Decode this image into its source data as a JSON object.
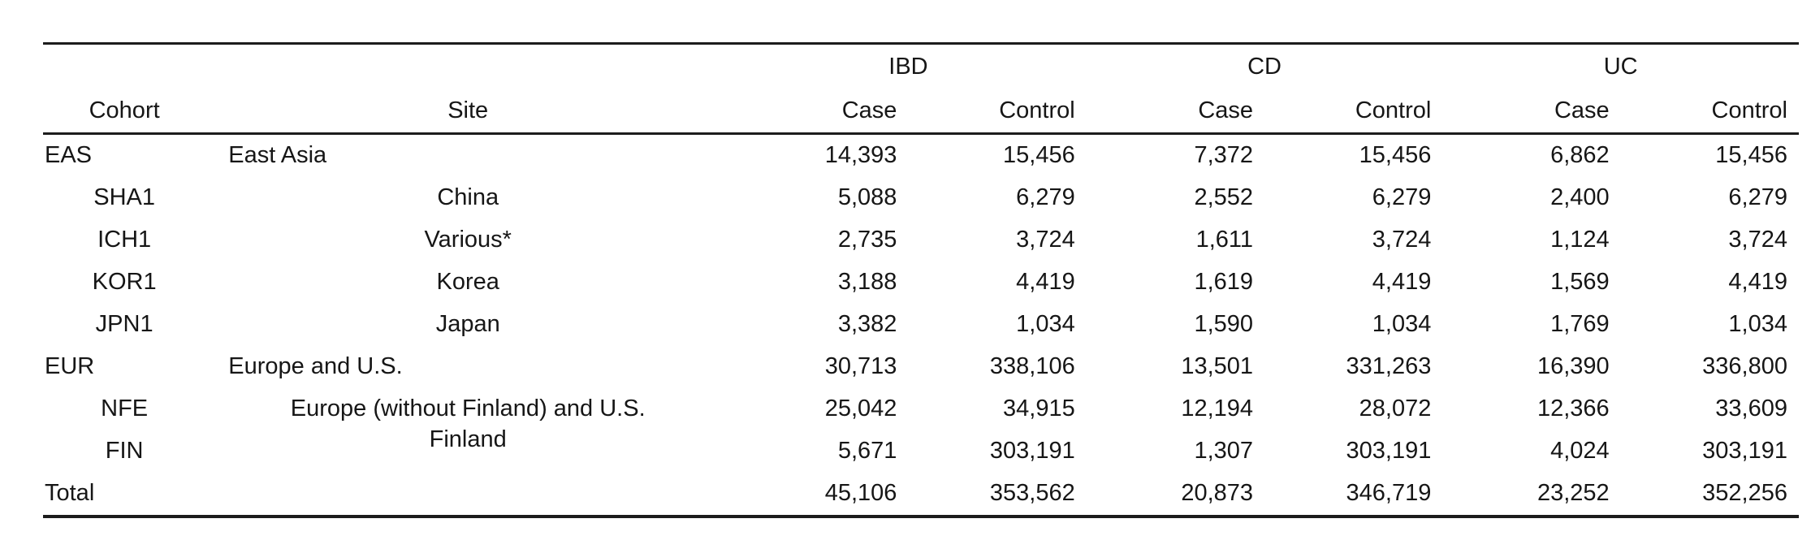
{
  "table": {
    "group_headers": [
      {
        "label": "IBD"
      },
      {
        "label": "CD"
      },
      {
        "label": "UC"
      }
    ],
    "column_headers": {
      "cohort": "Cohort",
      "site": "Site",
      "case": "Case",
      "control": "Control"
    },
    "rows": [
      {
        "cohort": "EAS",
        "site": "East Asia",
        "level": "group",
        "values": [
          "14,393",
          "15,456",
          "7,372",
          "15,456",
          "6,862",
          "15,456"
        ]
      },
      {
        "cohort": "SHA1",
        "site": "China",
        "level": "sub",
        "values": [
          "5,088",
          "6,279",
          "2,552",
          "6,279",
          "2,400",
          "6,279"
        ]
      },
      {
        "cohort": "ICH1",
        "site": "Various*",
        "level": "sub",
        "values": [
          "2,735",
          "3,724",
          "1,611",
          "3,724",
          "1,124",
          "3,724"
        ]
      },
      {
        "cohort": "KOR1",
        "site": "Korea",
        "level": "sub",
        "values": [
          "3,188",
          "4,419",
          "1,619",
          "4,419",
          "1,569",
          "4,419"
        ]
      },
      {
        "cohort": "JPN1",
        "site": "Japan",
        "level": "sub",
        "values": [
          "3,382",
          "1,034",
          "1,590",
          "1,034",
          "1,769",
          "1,034"
        ]
      },
      {
        "cohort": "EUR",
        "site": "Europe and U.S.",
        "level": "group",
        "values": [
          "30,713",
          "338,106",
          "13,501",
          "331,263",
          "16,390",
          "336,800"
        ]
      },
      {
        "cohort": "NFE",
        "site": "Europe (without Finland) and U.S.",
        "level": "sub",
        "values": [
          "25,042",
          "34,915",
          "12,194",
          "28,072",
          "12,366",
          "33,609"
        ]
      },
      {
        "cohort": "FIN",
        "site": "Finland",
        "level": "sub",
        "site_raised": true,
        "values": [
          "5,671",
          "303,191",
          "1,307",
          "303,191",
          "4,024",
          "303,191"
        ]
      },
      {
        "cohort": "Total",
        "site": "",
        "level": "total",
        "values": [
          "45,106",
          "353,562",
          "20,873",
          "346,719",
          "23,252",
          "352,256"
        ]
      }
    ]
  }
}
